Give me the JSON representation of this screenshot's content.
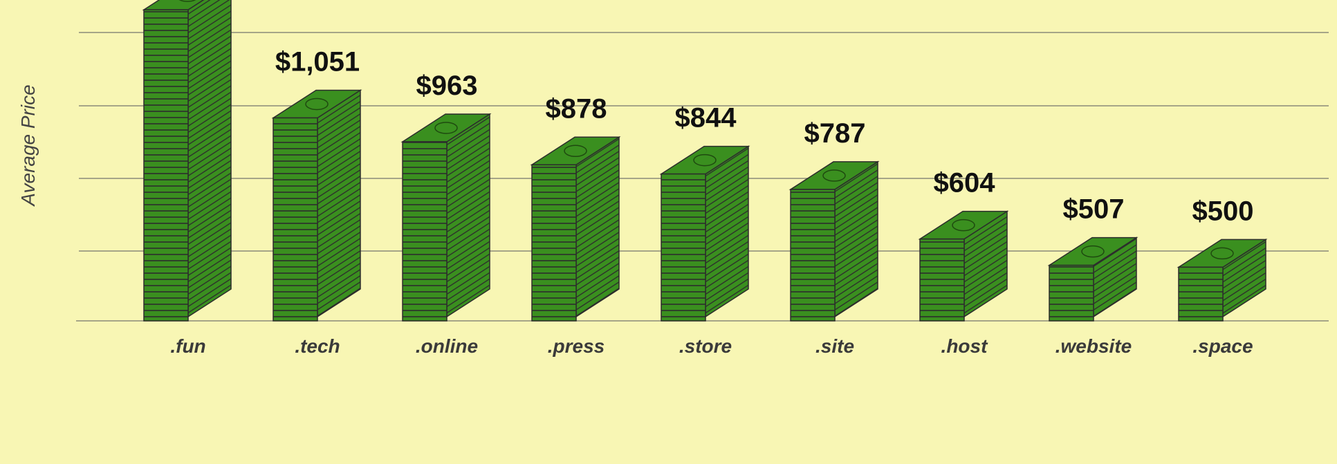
{
  "chart_data": {
    "type": "bar",
    "y_label": "Average Price",
    "categories": [
      ".fun",
      ".tech",
      ".online",
      ".press",
      ".store",
      ".site",
      ".host",
      ".website",
      ".space"
    ],
    "values": [
      1450,
      1051,
      963,
      878,
      844,
      787,
      604,
      507,
      500
    ],
    "value_labels": [
      null,
      "$1,051",
      "$963",
      "$878",
      "$844",
      "$787",
      "$604",
      "$507",
      "$500"
    ],
    "color": "#3a8f1f",
    "ylim": [
      302,
      1486
    ],
    "grid": true
  }
}
